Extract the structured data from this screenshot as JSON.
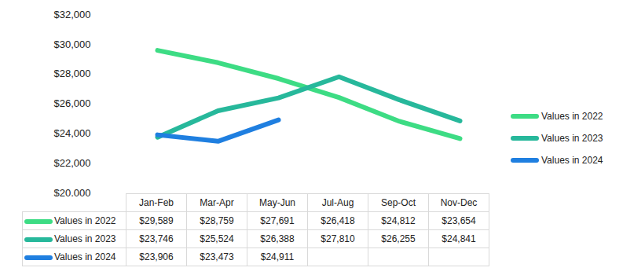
{
  "chart_data": {
    "type": "line",
    "categories": [
      "Jan-Feb",
      "Mar-Apr",
      "May-Jun",
      "Jul-Aug",
      "Sep-Oct",
      "Nov-Dec"
    ],
    "series": [
      {
        "name": "Values in 2022",
        "color": "#3ddc84",
        "values": [
          29589,
          28759,
          27691,
          26418,
          24812,
          23654
        ],
        "value_labels": [
          "$29,589",
          "$28,759",
          "$27,691",
          "$26,418",
          "$24,812",
          "$23,654"
        ]
      },
      {
        "name": "Values in 2023",
        "color": "#27b89b",
        "values": [
          23746,
          25524,
          26388,
          27810,
          26255,
          24841
        ],
        "value_labels": [
          "$23,746",
          "$25,524",
          "$26,388",
          "$27,810",
          "$26,255",
          "$24,841"
        ]
      },
      {
        "name": "Values in 2024",
        "color": "#1f7fe0",
        "values": [
          23906,
          23473,
          24911,
          null,
          null,
          null
        ],
        "value_labels": [
          "$23,906",
          "$23,473",
          "$24,911",
          null,
          null,
          null
        ]
      }
    ],
    "ylim": [
      20000,
      32000
    ],
    "yticks": [
      {
        "value": 20000,
        "label": "$20,000"
      },
      {
        "value": 22000,
        "label": "$22,000"
      },
      {
        "value": 24000,
        "label": "$24,000"
      },
      {
        "value": 26000,
        "label": "$26,000"
      },
      {
        "value": 28000,
        "label": "$28,000"
      },
      {
        "value": 30000,
        "label": "$30,000"
      },
      {
        "value": 32000,
        "label": "$32,000"
      }
    ],
    "grid": false,
    "legend": "right"
  }
}
